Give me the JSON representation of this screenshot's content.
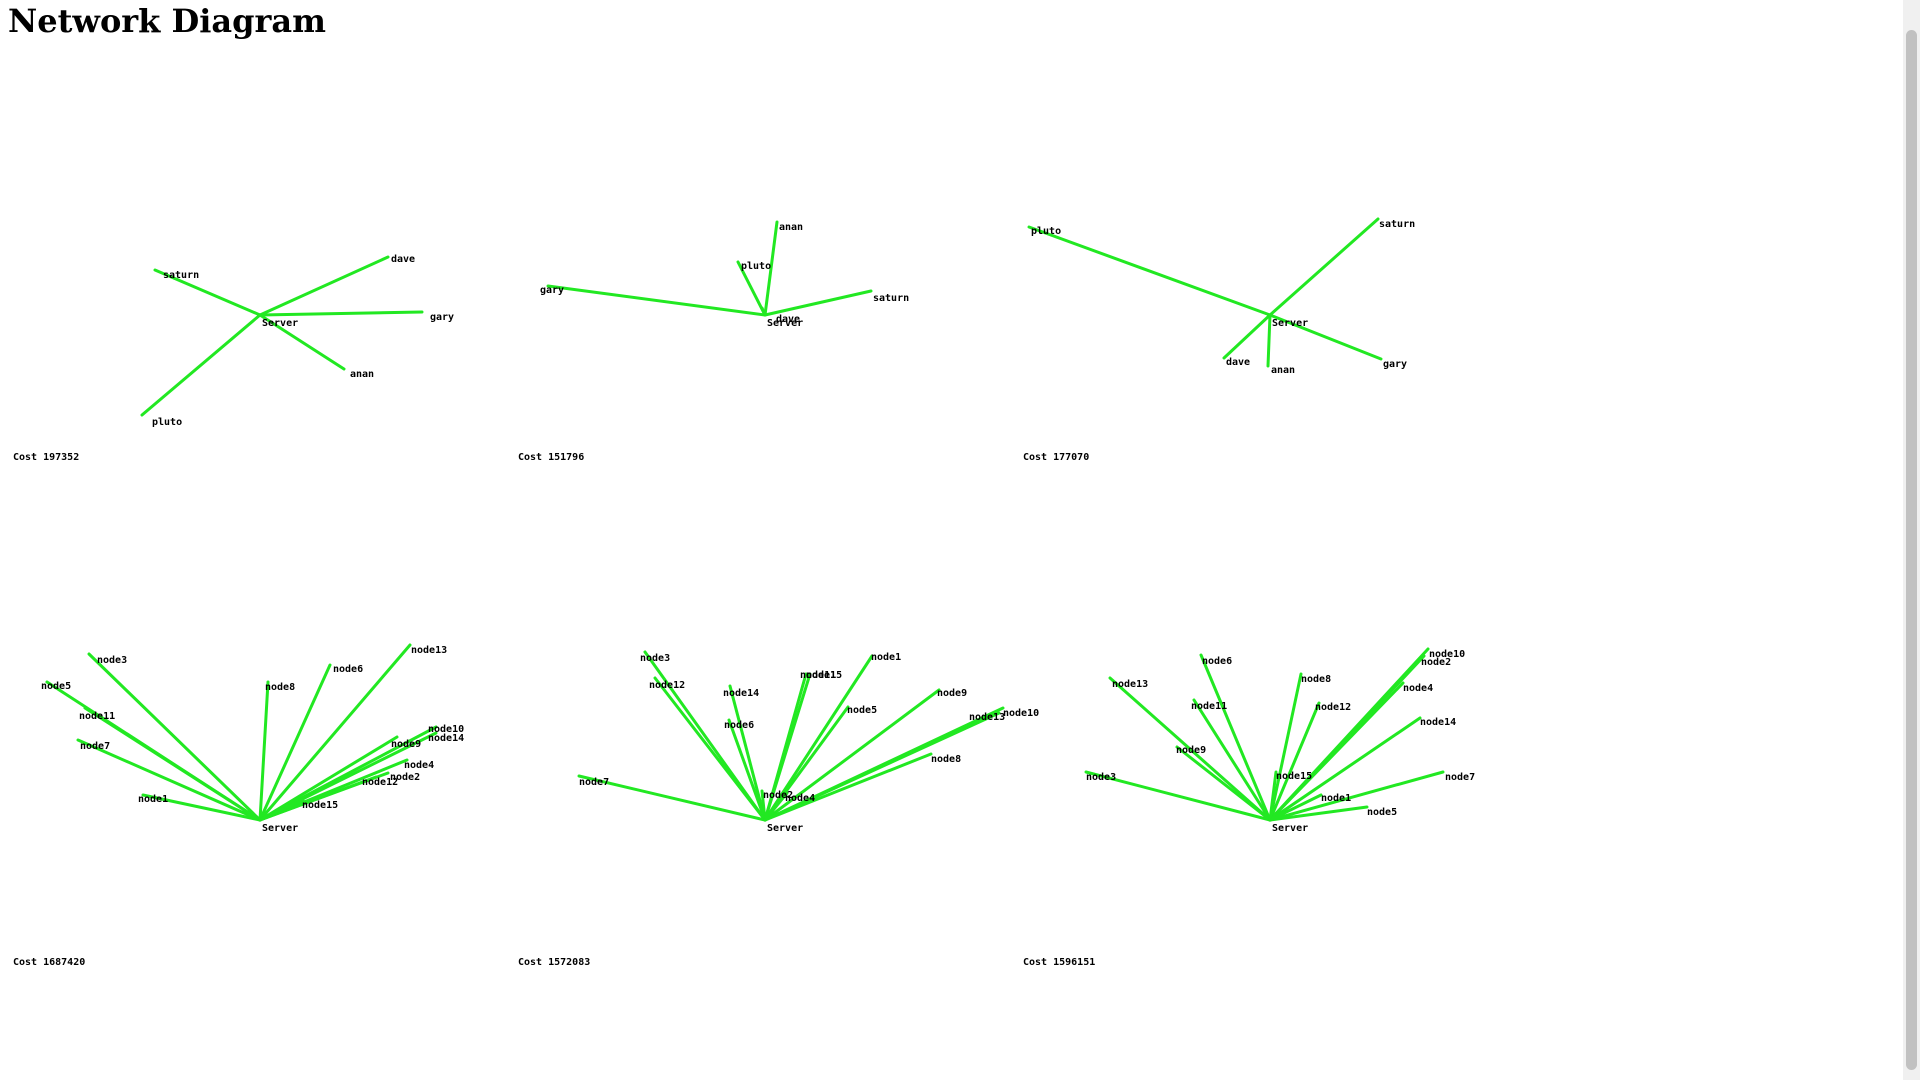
{
  "page": {
    "title": "Network Diagram"
  },
  "chart_data": [
    {
      "type": "diagram",
      "cost_label": "Cost 197352",
      "hub": "Server",
      "nodes": [
        {
          "label": "saturn"
        },
        {
          "label": "dave"
        },
        {
          "label": "gary"
        },
        {
          "label": "anan"
        },
        {
          "label": "pluto"
        }
      ]
    },
    {
      "type": "diagram",
      "cost_label": "Cost 151796",
      "hub": "Server",
      "nodes": [
        {
          "label": "anan"
        },
        {
          "label": "pluto"
        },
        {
          "label": "gary"
        },
        {
          "label": "saturn"
        },
        {
          "label": "dave"
        }
      ]
    },
    {
      "type": "diagram",
      "cost_label": "Cost 177070",
      "hub": "Server",
      "nodes": [
        {
          "label": "pluto"
        },
        {
          "label": "saturn"
        },
        {
          "label": "dave"
        },
        {
          "label": "anan"
        },
        {
          "label": "gary"
        }
      ]
    },
    {
      "type": "diagram",
      "cost_label": "Cost 1687420",
      "hub": "Server",
      "nodes": [
        {
          "label": "node3"
        },
        {
          "label": "node5"
        },
        {
          "label": "node11"
        },
        {
          "label": "node7"
        },
        {
          "label": "node1"
        },
        {
          "label": "node8"
        },
        {
          "label": "node6"
        },
        {
          "label": "node13"
        },
        {
          "label": "node10"
        },
        {
          "label": "node14"
        },
        {
          "label": "node9"
        },
        {
          "label": "node4"
        },
        {
          "label": "node2"
        },
        {
          "label": "node12"
        },
        {
          "label": "node15"
        }
      ]
    },
    {
      "type": "diagram",
      "cost_label": "Cost 1572083",
      "hub": "Server",
      "nodes": [
        {
          "label": "node3"
        },
        {
          "label": "node12"
        },
        {
          "label": "node14"
        },
        {
          "label": "node6"
        },
        {
          "label": "node7"
        },
        {
          "label": "node2"
        },
        {
          "label": "node4"
        },
        {
          "label": "node11"
        },
        {
          "label": "node15"
        },
        {
          "label": "node1"
        },
        {
          "label": "node9"
        },
        {
          "label": "node5"
        },
        {
          "label": "node13"
        },
        {
          "label": "node10"
        },
        {
          "label": "node8"
        }
      ]
    },
    {
      "type": "diagram",
      "cost_label": "Cost 1596151",
      "hub": "Server",
      "nodes": [
        {
          "label": "node6"
        },
        {
          "label": "node13"
        },
        {
          "label": "node11"
        },
        {
          "label": "node9"
        },
        {
          "label": "node3"
        },
        {
          "label": "node8"
        },
        {
          "label": "node12"
        },
        {
          "label": "node10"
        },
        {
          "label": "node2"
        },
        {
          "label": "node4"
        },
        {
          "label": "node14"
        },
        {
          "label": "node7"
        },
        {
          "label": "node15"
        },
        {
          "label": "node1"
        },
        {
          "label": "node5"
        }
      ]
    }
  ]
}
